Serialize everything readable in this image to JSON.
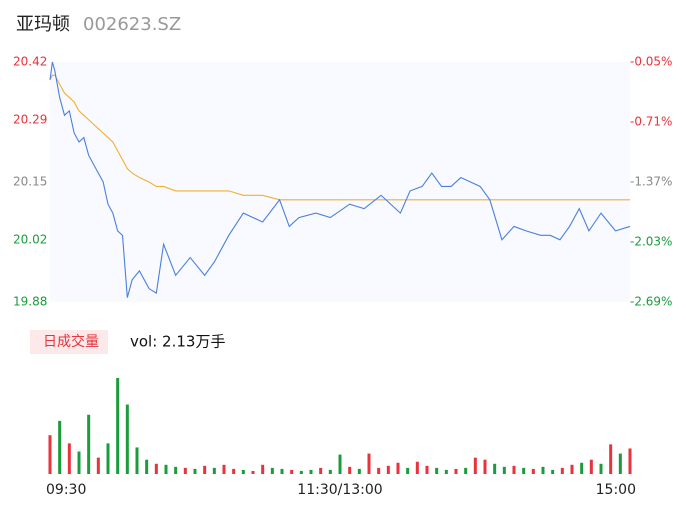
{
  "header": {
    "name": "亚玛顿",
    "code": "002623.SZ"
  },
  "chart_data": [
    {
      "type": "line",
      "x": [
        0,
        1,
        2,
        4,
        6,
        8,
        10,
        12,
        14,
        16,
        18,
        20,
        22,
        24,
        26,
        28,
        30,
        32,
        34,
        37,
        41,
        44,
        47,
        52,
        58,
        64,
        68,
        74,
        80,
        88,
        95,
        99,
        103,
        110,
        116,
        124,
        130,
        137,
        145,
        149,
        154,
        158,
        162,
        166,
        170,
        174,
        178,
        182,
        187,
        192,
        197,
        203,
        207,
        211,
        215,
        219,
        223,
        228,
        234,
        240
      ],
      "xlim": [
        0,
        240
      ],
      "ylim": [
        19.88,
        20.42
      ],
      "yticks": [
        20.42,
        20.29,
        20.15,
        20.02,
        19.88
      ],
      "ytick_colors": [
        "#e8323c",
        "#e8323c",
        "#888888",
        "#1a9c3c",
        "#1a9c3c"
      ],
      "y2lim": [
        -2.69,
        -0.05
      ],
      "y2ticks": [
        {
          "value": -0.05,
          "label": "-0.05%"
        },
        {
          "value": -0.71,
          "label": "-0.71%"
        },
        {
          "value": -1.37,
          "label": "-1.37%"
        },
        {
          "value": -2.03,
          "label": "-2.03%"
        },
        {
          "value": -2.69,
          "label": "-2.69%"
        }
      ],
      "y2tick_colors": [
        "#e8323c",
        "#e8323c",
        "#888888",
        "#1a9c3c",
        "#1a9c3c"
      ],
      "series": [
        {
          "name": "price",
          "color": "#4a7fe0",
          "values": [
            20.38,
            20.42,
            20.4,
            20.34,
            20.3,
            20.31,
            20.26,
            20.24,
            20.25,
            20.21,
            20.19,
            20.17,
            20.15,
            20.1,
            20.08,
            20.04,
            20.03,
            19.89,
            19.93,
            19.95,
            19.91,
            19.9,
            20.01,
            19.94,
            19.98,
            19.94,
            19.97,
            20.03,
            20.08,
            20.06,
            20.11,
            20.05,
            20.07,
            20.08,
            20.07,
            20.1,
            20.09,
            20.12,
            20.08,
            20.13,
            20.14,
            20.17,
            20.14,
            20.14,
            20.16,
            20.15,
            20.14,
            20.11,
            20.02,
            20.05,
            20.04,
            20.03,
            20.03,
            20.02,
            20.05,
            20.09,
            20.04,
            20.08,
            20.04,
            20.05
          ]
        },
        {
          "name": "average",
          "color": "#f0b030",
          "values": [
            20.38,
            20.39,
            20.39,
            20.37,
            20.35,
            20.34,
            20.33,
            20.31,
            20.3,
            20.29,
            20.28,
            20.27,
            20.26,
            20.25,
            20.24,
            20.22,
            20.2,
            20.18,
            20.17,
            20.16,
            20.15,
            20.14,
            20.14,
            20.13,
            20.13,
            20.13,
            20.13,
            20.13,
            20.12,
            20.12,
            20.11,
            20.11,
            20.11,
            20.11,
            20.11,
            20.11,
            20.11,
            20.11,
            20.11,
            20.11,
            20.11,
            20.11,
            20.11,
            20.11,
            20.11,
            20.11,
            20.11,
            20.11,
            20.11,
            20.11,
            20.11,
            20.11,
            20.11,
            20.11,
            20.11,
            20.11,
            20.11,
            20.11,
            20.11,
            20.11
          ]
        }
      ]
    },
    {
      "type": "bar",
      "title": "日成交量",
      "volume_label": "vol: 2.13万手",
      "x": [
        0,
        4,
        8,
        12,
        16,
        20,
        24,
        28,
        32,
        36,
        40,
        44,
        48,
        52,
        56,
        60,
        64,
        68,
        72,
        76,
        80,
        84,
        88,
        92,
        96,
        100,
        104,
        108,
        112,
        116,
        120,
        124,
        128,
        132,
        136,
        140,
        144,
        148,
        152,
        156,
        160,
        164,
        168,
        172,
        176,
        180,
        184,
        188,
        192,
        196,
        200,
        204,
        208,
        212,
        216,
        220,
        224,
        228,
        232,
        236,
        240
      ],
      "xlim": [
        0,
        240
      ],
      "xticks": [
        {
          "value": 0,
          "label": "09:30"
        },
        {
          "value": 120,
          "label": "11:30/13:00"
        },
        {
          "value": 240,
          "label": "15:00"
        }
      ],
      "values": [
        380,
        520,
        300,
        220,
        580,
        160,
        300,
        940,
        680,
        260,
        140,
        100,
        90,
        70,
        60,
        50,
        80,
        60,
        90,
        50,
        40,
        30,
        90,
        60,
        50,
        40,
        30,
        40,
        60,
        40,
        190,
        70,
        50,
        200,
        60,
        80,
        110,
        60,
        120,
        80,
        60,
        40,
        50,
        60,
        160,
        140,
        100,
        70,
        80,
        60,
        50,
        70,
        40,
        60,
        90,
        110,
        140,
        100,
        290,
        200,
        250
      ],
      "colors": [
        "#e8323c",
        "#1a9c3c",
        "#e8323c",
        "#1a9c3c",
        "#1a9c3c",
        "#e8323c",
        "#1a9c3c",
        "#1a9c3c",
        "#1a9c3c",
        "#1a9c3c",
        "#1a9c3c",
        "#e8323c",
        "#1a9c3c",
        "#1a9c3c",
        "#e8323c",
        "#1a9c3c",
        "#e8323c",
        "#1a9c3c",
        "#e8323c",
        "#e8323c",
        "#1a9c3c",
        "#e8323c",
        "#e8323c",
        "#1a9c3c",
        "#1a9c3c",
        "#e8323c",
        "#1a9c3c",
        "#1a9c3c",
        "#e8323c",
        "#1a9c3c",
        "#1a9c3c",
        "#e8323c",
        "#1a9c3c",
        "#e8323c",
        "#e8323c",
        "#e8323c",
        "#e8323c",
        "#1a9c3c",
        "#e8323c",
        "#e8323c",
        "#1a9c3c",
        "#1a9c3c",
        "#e8323c",
        "#1a9c3c",
        "#e8323c",
        "#e8323c",
        "#1a9c3c",
        "#1a9c3c",
        "#e8323c",
        "#1a9c3c",
        "#e8323c",
        "#1a9c3c",
        "#1a9c3c",
        "#e8323c",
        "#e8323c",
        "#1a9c3c",
        "#e8323c",
        "#1a9c3c",
        "#e8323c",
        "#1a9c3c",
        "#e8323c"
      ]
    }
  ]
}
